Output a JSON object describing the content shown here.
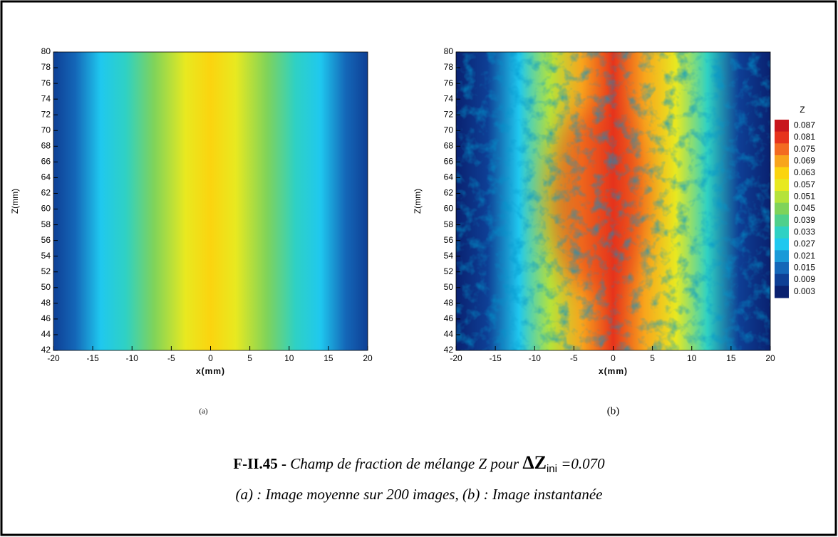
{
  "chart_data": [
    {
      "type": "heatmap",
      "field": "mean",
      "xlabel": "x(mm)",
      "ylabel": "Z(mm)",
      "subcaption": "(a)",
      "xlim": [
        -20,
        20
      ],
      "xticks": [
        -20,
        -15,
        -10,
        -5,
        0,
        5,
        10,
        15,
        20
      ],
      "ylim": [
        42,
        80
      ],
      "yticks": [
        42,
        44,
        46,
        48,
        50,
        52,
        54,
        56,
        58,
        60,
        62,
        64,
        66,
        68,
        70,
        72,
        74,
        76,
        78,
        80
      ]
    },
    {
      "type": "heatmap",
      "field": "instant",
      "xlabel": "x(mm)",
      "ylabel": "Z(mm)",
      "subcaption": "(b)",
      "xlim": [
        -20,
        20
      ],
      "xticks": [
        -20,
        -15,
        -10,
        -5,
        0,
        5,
        10,
        15,
        20
      ],
      "ylim": [
        42,
        80
      ],
      "yticks": [
        42,
        44,
        46,
        48,
        50,
        52,
        54,
        56,
        58,
        60,
        62,
        64,
        66,
        68,
        70,
        72,
        74,
        76,
        78,
        80
      ],
      "colorbar": {
        "title": "Z",
        "ticks": [
          0.087,
          0.081,
          0.075,
          0.069,
          0.063,
          0.057,
          0.051,
          0.045,
          0.039,
          0.033,
          0.027,
          0.021,
          0.015,
          0.009,
          0.003
        ],
        "colors": [
          "#c8161d",
          "#e6331c",
          "#f36b21",
          "#f8a51c",
          "#fbd40f",
          "#e8e920",
          "#b5e33a",
          "#7fd35a",
          "#4fd08c",
          "#2fd1c4",
          "#1fc8ef",
          "#1a9ad8",
          "#1467b8",
          "#0e3f95",
          "#0a2170"
        ]
      }
    }
  ],
  "caption": {
    "label": "F-II.45 -",
    "text": "Champ de fraction de mélange Z pour",
    "symbol": "ΔZ",
    "subscript": "ini",
    "value": "=0.070",
    "line2": "(a) : Image moyenne sur 200 images, (b) : Image instantanée"
  }
}
